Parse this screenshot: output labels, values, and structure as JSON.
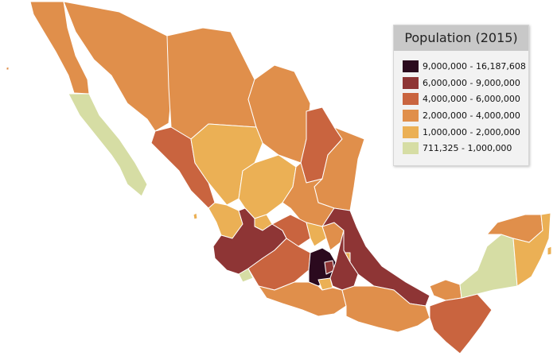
{
  "legend": {
    "title": "Population (2015)",
    "items": [
      {
        "label": "9,000,000 - 16,187,608",
        "color": "#2b0a1e"
      },
      {
        "label": "6,000,000 - 9,000,000",
        "color": "#8e3535"
      },
      {
        "label": "4,000,000 - 6,000,000",
        "color": "#c9643f"
      },
      {
        "label": "2,000,000 - 4,000,000",
        "color": "#e08f4b"
      },
      {
        "label": "1,000,000 - 2,000,000",
        "color": "#ebb055"
      },
      {
        "label": "711,325 - 1,000,000",
        "color": "#d6dda4"
      }
    ]
  },
  "colors": {
    "stroke": "#ffffff",
    "background": "#ffffff"
  }
}
